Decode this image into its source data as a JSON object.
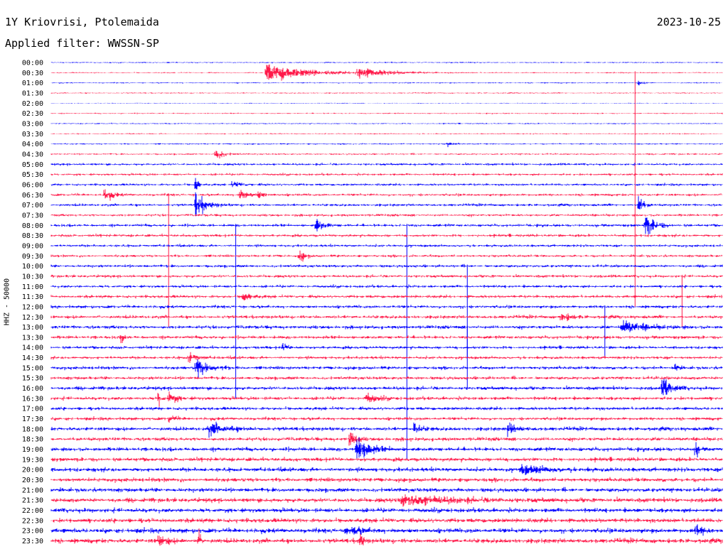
{
  "header": {
    "station": "1Y Kriovrisi, Ptolemaida",
    "date": "2023-10-25",
    "filter": "Applied filter: WWSSN-SP"
  },
  "chart_data": {
    "type": "line",
    "title": "1Y Kriovrisi, Ptolemaida",
    "ylabel": "HHZ - 50000",
    "colors": [
      "#0000ff",
      "#ff1a4a"
    ],
    "row_labels": [
      "00:00",
      "00:30",
      "01:00",
      "01:30",
      "02:00",
      "02:30",
      "03:00",
      "03:30",
      "04:00",
      "04:30",
      "05:00",
      "05:30",
      "06:00",
      "06:30",
      "07:00",
      "07:30",
      "08:00",
      "08:30",
      "09:00",
      "09:30",
      "10:00",
      "10:30",
      "11:00",
      "11:30",
      "12:00",
      "12:30",
      "13:00",
      "13:30",
      "14:00",
      "14:30",
      "15:00",
      "15:30",
      "16:00",
      "16:30",
      "17:00",
      "17:30",
      "18:00",
      "18:30",
      "19:00",
      "19:30",
      "20:00",
      "20:30",
      "21:00",
      "21:30",
      "22:00",
      "22:30",
      "23:00",
      "23:30"
    ],
    "noise_level": [
      0.5,
      0.5,
      0.5,
      0.5,
      0.3,
      0.5,
      0.5,
      0.5,
      0.6,
      0.7,
      1,
      1,
      1,
      1.1,
      1.1,
      1.1,
      1.2,
      1.2,
      1.1,
      1.1,
      1.2,
      1.2,
      1.2,
      1.3,
      1.3,
      1.4,
      1.5,
      1.4,
      1.3,
      1.3,
      1.4,
      1.4,
      1.5,
      1.5,
      1.4,
      1.4,
      1.6,
      1.6,
      1.7,
      1.7,
      1.8,
      1.8,
      1.8,
      1.9,
      1.9,
      1.9,
      2,
      2
    ],
    "events": [
      {
        "row": 1,
        "t": 0.32,
        "amp": 10,
        "dur": 0.08
      },
      {
        "row": 1,
        "t": 0.455,
        "amp": 6,
        "dur": 0.06
      },
      {
        "row": 2,
        "t": 0.875,
        "amp": 2,
        "dur": 0.01
      },
      {
        "row": 8,
        "t": 0.59,
        "amp": 3,
        "dur": 0.01
      },
      {
        "row": 9,
        "t": 0.245,
        "amp": 8,
        "dur": 0.015
      },
      {
        "row": 12,
        "t": 0.27,
        "amp": 3,
        "dur": 0.02
      },
      {
        "row": 12,
        "t": 0.215,
        "amp": 14,
        "dur": 0.005
      },
      {
        "row": 13,
        "t": 0.08,
        "amp": 7,
        "dur": 0.015
      },
      {
        "row": 13,
        "t": 0.28,
        "amp": 6,
        "dur": 0.02
      },
      {
        "row": 13,
        "t": 0.31,
        "amp": 4,
        "dur": 0.01
      },
      {
        "row": 14,
        "t": 0.215,
        "amp": 14,
        "dur": 0.02
      },
      {
        "row": 14,
        "t": 0.875,
        "amp": 12,
        "dur": 0.01
      },
      {
        "row": 16,
        "t": 0.395,
        "amp": 7,
        "dur": 0.015
      },
      {
        "row": 16,
        "t": 0.885,
        "amp": 12,
        "dur": 0.02
      },
      {
        "row": 19,
        "t": 0.37,
        "amp": 7,
        "dur": 0.01
      },
      {
        "row": 23,
        "t": 0.285,
        "amp": 7,
        "dur": 0.015
      },
      {
        "row": 25,
        "t": 0.76,
        "amp": 5,
        "dur": 0.02
      },
      {
        "row": 26,
        "t": 0.85,
        "amp": 6,
        "dur": 0.05
      },
      {
        "row": 27,
        "t": 0.105,
        "amp": 8,
        "dur": 0.005
      },
      {
        "row": 28,
        "t": 0.345,
        "amp": 4,
        "dur": 0.01
      },
      {
        "row": 29,
        "t": 0.205,
        "amp": 6,
        "dur": 0.015
      },
      {
        "row": 30,
        "t": 0.215,
        "amp": 11,
        "dur": 0.025
      },
      {
        "row": 30,
        "t": 0.93,
        "amp": 8,
        "dur": 0.005
      },
      {
        "row": 32,
        "t": 0.91,
        "amp": 10,
        "dur": 0.02
      },
      {
        "row": 33,
        "t": 0.16,
        "amp": 10,
        "dur": 0.005
      },
      {
        "row": 33,
        "t": 0.175,
        "amp": 7,
        "dur": 0.015
      },
      {
        "row": 33,
        "t": 0.47,
        "amp": 5,
        "dur": 0.02
      },
      {
        "row": 35,
        "t": 0.175,
        "amp": 5,
        "dur": 0.01
      },
      {
        "row": 36,
        "t": 0.235,
        "amp": 6,
        "dur": 0.04
      },
      {
        "row": 36,
        "t": 0.54,
        "amp": 6,
        "dur": 0.015
      },
      {
        "row": 36,
        "t": 0.68,
        "amp": 6,
        "dur": 0.02
      },
      {
        "row": 37,
        "t": 0.445,
        "amp": 12,
        "dur": 0.01
      },
      {
        "row": 38,
        "t": 0.455,
        "amp": 15,
        "dur": 0.025
      },
      {
        "row": 38,
        "t": 0.96,
        "amp": 10,
        "dur": 0.005
      },
      {
        "row": 40,
        "t": 0.7,
        "amp": 5,
        "dur": 0.05
      },
      {
        "row": 43,
        "t": 0.52,
        "amp": 6,
        "dur": 0.1
      },
      {
        "row": 46,
        "t": 0.44,
        "amp": 5,
        "dur": 0.03
      },
      {
        "row": 46,
        "t": 0.96,
        "amp": 5,
        "dur": 0.02
      },
      {
        "row": 47,
        "t": 0.16,
        "amp": 8,
        "dur": 0.015
      },
      {
        "row": 47,
        "t": 0.22,
        "amp": 10,
        "dur": 0.005
      },
      {
        "row": 47,
        "t": 0.46,
        "amp": 14,
        "dur": 0.005
      }
    ],
    "glitches": [
      {
        "row": 1,
        "t": 0.87,
        "len": 23
      },
      {
        "row": 13,
        "t": 0.175,
        "len": 13
      },
      {
        "row": 16,
        "t": 0.53,
        "len": 23
      },
      {
        "row": 16,
        "t": 0.275,
        "len": 17
      },
      {
        "row": 20,
        "t": 0.62,
        "len": 12
      },
      {
        "row": 21,
        "t": 0.94,
        "len": 5
      },
      {
        "row": 24,
        "t": 0.825,
        "len": 5
      },
      {
        "row": 26,
        "t": 0.62,
        "len": 3
      }
    ]
  }
}
